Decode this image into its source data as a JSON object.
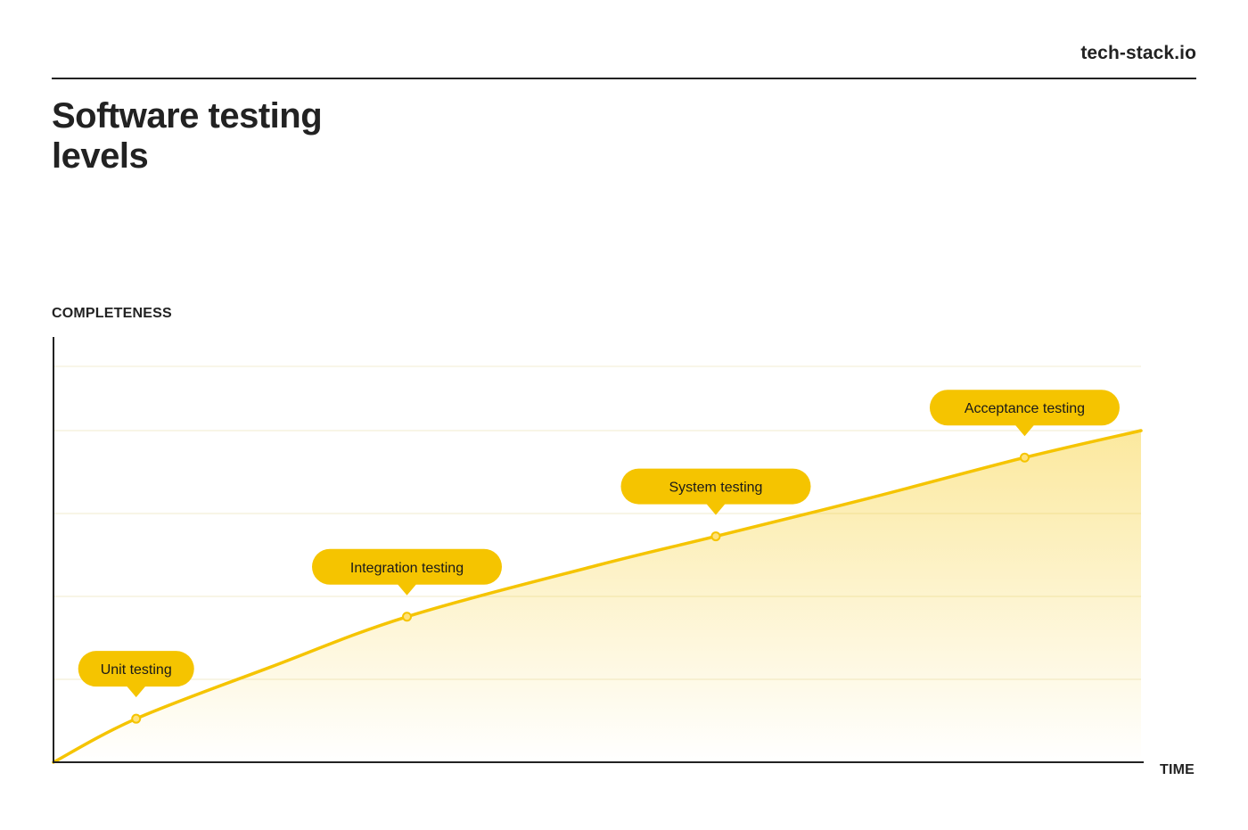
{
  "header": {
    "brand": "tech-stack.io",
    "title_lines": [
      "Software testing",
      "levels"
    ]
  },
  "colors": {
    "accent": "#F5C400",
    "text": "#222222",
    "grid": "#F3EFD6"
  },
  "chart_data": {
    "type": "area",
    "title": "Software testing levels",
    "xlabel": "TIME",
    "ylabel": "COMPLETENESS",
    "xlim": [
      0,
      1
    ],
    "ylim": [
      0,
      1
    ],
    "grid": true,
    "tick_labels": false,
    "series": [
      {
        "x": [
          0,
          0.076,
          0.2,
          0.325,
          0.5,
          0.609,
          0.75,
          0.893,
          1
        ],
        "y": [
          0,
          0.105,
          0.23,
          0.351,
          0.475,
          0.545,
          0.637,
          0.735,
          0.8
        ]
      }
    ],
    "annotations": [
      {
        "label": "Unit testing",
        "x": 0.076,
        "y": 0.105
      },
      {
        "label": "Integration testing",
        "x": 0.325,
        "y": 0.351
      },
      {
        "label": "System testing",
        "x": 0.609,
        "y": 0.545
      },
      {
        "label": "Acceptance testing",
        "x": 0.893,
        "y": 0.735
      }
    ]
  }
}
